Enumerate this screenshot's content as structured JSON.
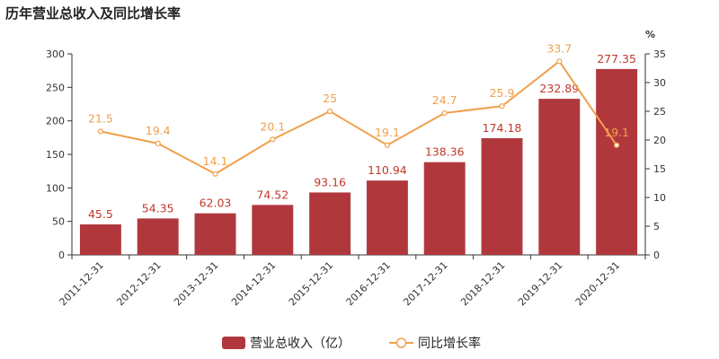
{
  "chart_data": {
    "type": "bar",
    "title": "历年营业总收入及同比增长率",
    "categories": [
      "2011-12-31",
      "2012-12-31",
      "2013-12-31",
      "2014-12-31",
      "2015-12-31",
      "2016-12-31",
      "2017-12-31",
      "2018-12-31",
      "2019-12-31",
      "2020-12-31"
    ],
    "series": [
      {
        "name": "营业总收入（亿）",
        "type": "bar",
        "axis": "left",
        "color": "#b0383d",
        "values": [
          45.5,
          54.35,
          62.03,
          74.52,
          93.16,
          110.94,
          138.36,
          174.18,
          232.89,
          277.35
        ]
      },
      {
        "name": "同比增长率",
        "type": "line",
        "axis": "right",
        "color": "#f0a04b",
        "values": [
          21.5,
          19.4,
          14.1,
          20.1,
          25,
          19.1,
          24.7,
          25.9,
          33.7,
          19.1
        ]
      }
    ],
    "left_axis": {
      "ylim": [
        0,
        300
      ],
      "ticks": [
        "0",
        "50",
        "100",
        "150",
        "200",
        "250",
        "300"
      ]
    },
    "right_axis": {
      "label": "%",
      "ylim": [
        0,
        35
      ],
      "ticks": [
        "0",
        "5",
        "10",
        "15",
        "20",
        "25",
        "30",
        "35"
      ]
    },
    "legend_position": "bottom",
    "grid": false
  }
}
